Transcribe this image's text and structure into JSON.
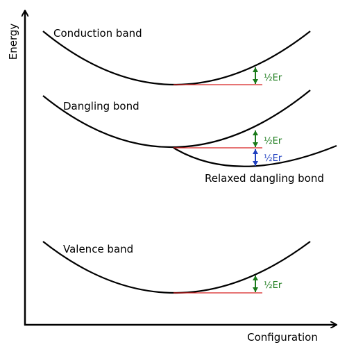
{
  "axes": {
    "y_label": "Energy",
    "x_label": "Configuration"
  },
  "curves": {
    "conduction": "Conduction band",
    "dangling": "Dangling bond",
    "relaxed": "Relaxed dangling bond",
    "valence": "Valence band"
  },
  "annotations": {
    "conduction_shift": "½Er",
    "dangling_shift": "½Er",
    "relaxation_shift": "½Er",
    "valence_shift": "½Er"
  }
}
